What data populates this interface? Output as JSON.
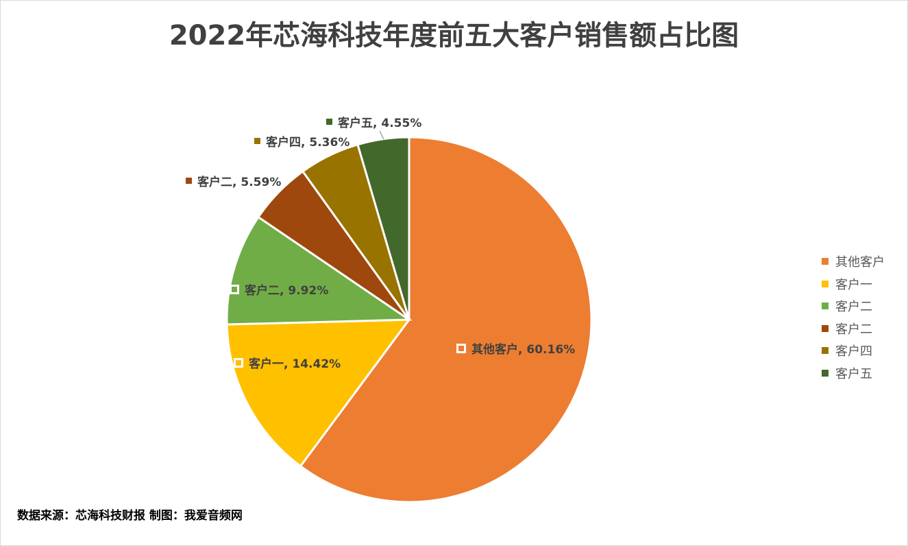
{
  "chart_data": {
    "type": "pie",
    "title": "2022年芯海科技年度前五大客户销售额占比图",
    "start_angle": "12 o'clock, clockwise",
    "slices": [
      {
        "label": "其他客户",
        "value": 60.16,
        "display": "60.16%",
        "color": "#ED7D31"
      },
      {
        "label": "客户一",
        "value": 14.42,
        "display": "14.42%",
        "color": "#FFC000"
      },
      {
        "label": "客户二",
        "value": 9.92,
        "display": "9.92%",
        "color": "#70AD47"
      },
      {
        "label": "客户二",
        "value": 5.59,
        "display": "5.59%",
        "color": "#9E480E"
      },
      {
        "label": "客户四",
        "value": 5.36,
        "display": "5.36%",
        "color": "#997300"
      },
      {
        "label": "客户五",
        "value": 4.55,
        "display": "4.55%",
        "color": "#43682B"
      }
    ],
    "legend_position": "right"
  },
  "footer": {
    "source": "数据来源：芯海科技财报   制图：我爱音频网"
  }
}
